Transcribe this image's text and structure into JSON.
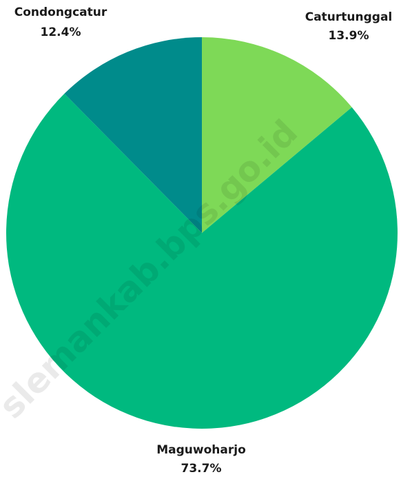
{
  "chart_data": {
    "type": "pie",
    "start_angle_deg": 0,
    "direction": "clockwise",
    "slices": [
      {
        "label": "Caturtunggal",
        "value": 13.9,
        "value_text": "13.9%",
        "color": "#7ed957"
      },
      {
        "label": "Maguwoharjo",
        "value": 73.7,
        "value_text": "73.7%",
        "color": "#00b97f"
      },
      {
        "label": "Condongcatur",
        "value": 12.4,
        "value_text": "12.4%",
        "color": "#008b8b"
      }
    ]
  },
  "watermark": "slemankab.bps.go.id"
}
